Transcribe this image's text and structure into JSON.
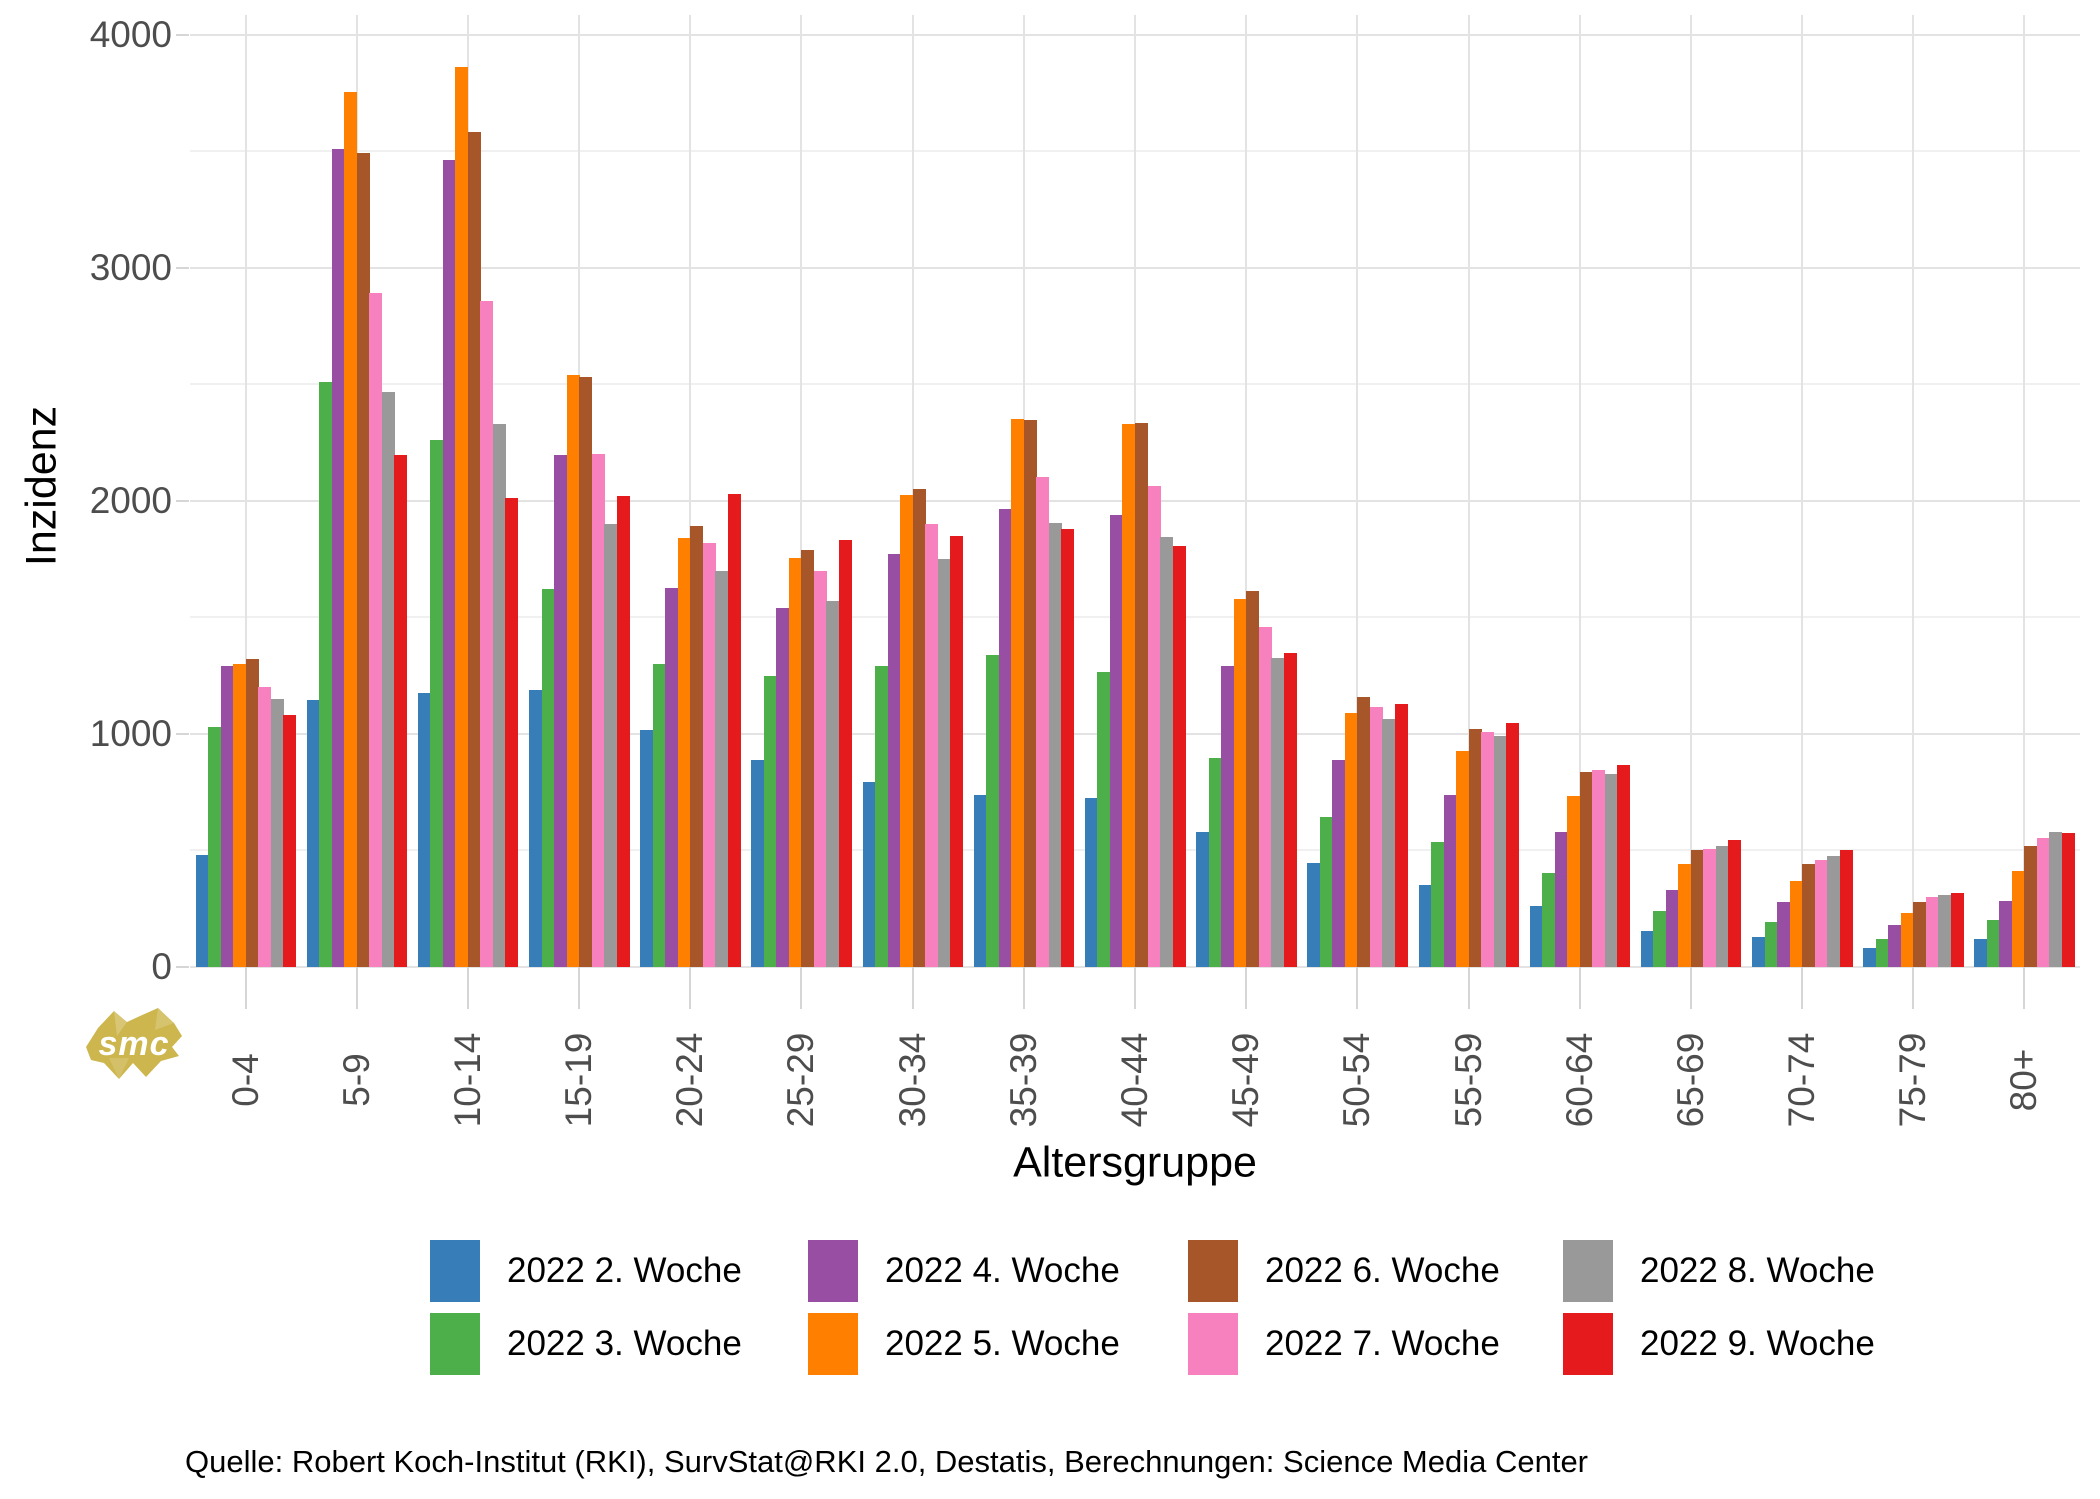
{
  "chart_data": {
    "type": "bar",
    "title": "",
    "xlabel": "Altersgruppe",
    "ylabel": "Inzidenz",
    "categories": [
      "0-4",
      "5-9",
      "10-14",
      "15-19",
      "20-24",
      "25-29",
      "30-34",
      "35-39",
      "40-44",
      "45-49",
      "50-54",
      "55-59",
      "60-64",
      "65-69",
      "70-74",
      "75-79",
      "80+"
    ],
    "series": [
      {
        "name": "2022 2. Woche",
        "color": "#377eb8",
        "values": [
          480,
          1145,
          1175,
          1190,
          1015,
          890,
          795,
          740,
          725,
          580,
          445,
          350,
          260,
          155,
          130,
          80,
          120
        ]
      },
      {
        "name": "2022 3. Woche",
        "color": "#4daf4a",
        "values": [
          1030,
          2510,
          2260,
          1620,
          1300,
          1250,
          1290,
          1340,
          1265,
          895,
          645,
          535,
          405,
          240,
          195,
          120,
          200
        ]
      },
      {
        "name": "2022 4. Woche",
        "color": "#984ea3",
        "values": [
          1290,
          3510,
          3460,
          2195,
          1625,
          1540,
          1770,
          1965,
          1940,
          1290,
          890,
          740,
          580,
          330,
          280,
          180,
          285
        ]
      },
      {
        "name": "2022 5. Woche",
        "color": "#ff7f00",
        "values": [
          1300,
          3755,
          3860,
          2540,
          1840,
          1755,
          2025,
          2350,
          2330,
          1580,
          1090,
          925,
          735,
          440,
          370,
          230,
          410
        ]
      },
      {
        "name": "2022 6. Woche",
        "color": "#a65628",
        "values": [
          1320,
          3490,
          3580,
          2530,
          1890,
          1790,
          2050,
          2345,
          2335,
          1615,
          1160,
          1020,
          838,
          500,
          443,
          280,
          520
        ]
      },
      {
        "name": "2022 7. Woche",
        "color": "#f781bf",
        "values": [
          1200,
          2890,
          2855,
          2200,
          1820,
          1700,
          1900,
          2100,
          2065,
          1460,
          1115,
          1010,
          845,
          507,
          460,
          300,
          555
        ]
      },
      {
        "name": "2022 8. Woche",
        "color": "#999999",
        "values": [
          1150,
          2465,
          2330,
          1900,
          1700,
          1570,
          1750,
          1905,
          1845,
          1325,
          1065,
          990,
          830,
          517,
          475,
          310,
          580
        ]
      },
      {
        "name": "2022 9. Woche",
        "color": "#e41a1c",
        "values": [
          1080,
          2195,
          2010,
          2020,
          2030,
          1830,
          1850,
          1880,
          1805,
          1345,
          1130,
          1045,
          868,
          545,
          500,
          318,
          575
        ]
      }
    ],
    "ylim": [
      0,
      4084
    ],
    "y_major_ticks": [
      0,
      1000,
      2000,
      3000,
      4000
    ],
    "y_minor_ticks": [
      500,
      1500,
      2500,
      3500
    ],
    "grid": true,
    "legend_position": "bottom"
  },
  "colors": {
    "grid_major": "#e3e3e3",
    "grid_minor": "#f0f0f0",
    "axis_text": "#4d4d4d",
    "tick": "#d6d6d6"
  },
  "caption": {
    "text": "Quelle: Robert Koch-Institut (RKI), SurvStat@RKI 2.0, Destatis, Berechnungen: Science Media Center"
  },
  "logo": {
    "text": "smc",
    "color": "#cdb64e"
  }
}
